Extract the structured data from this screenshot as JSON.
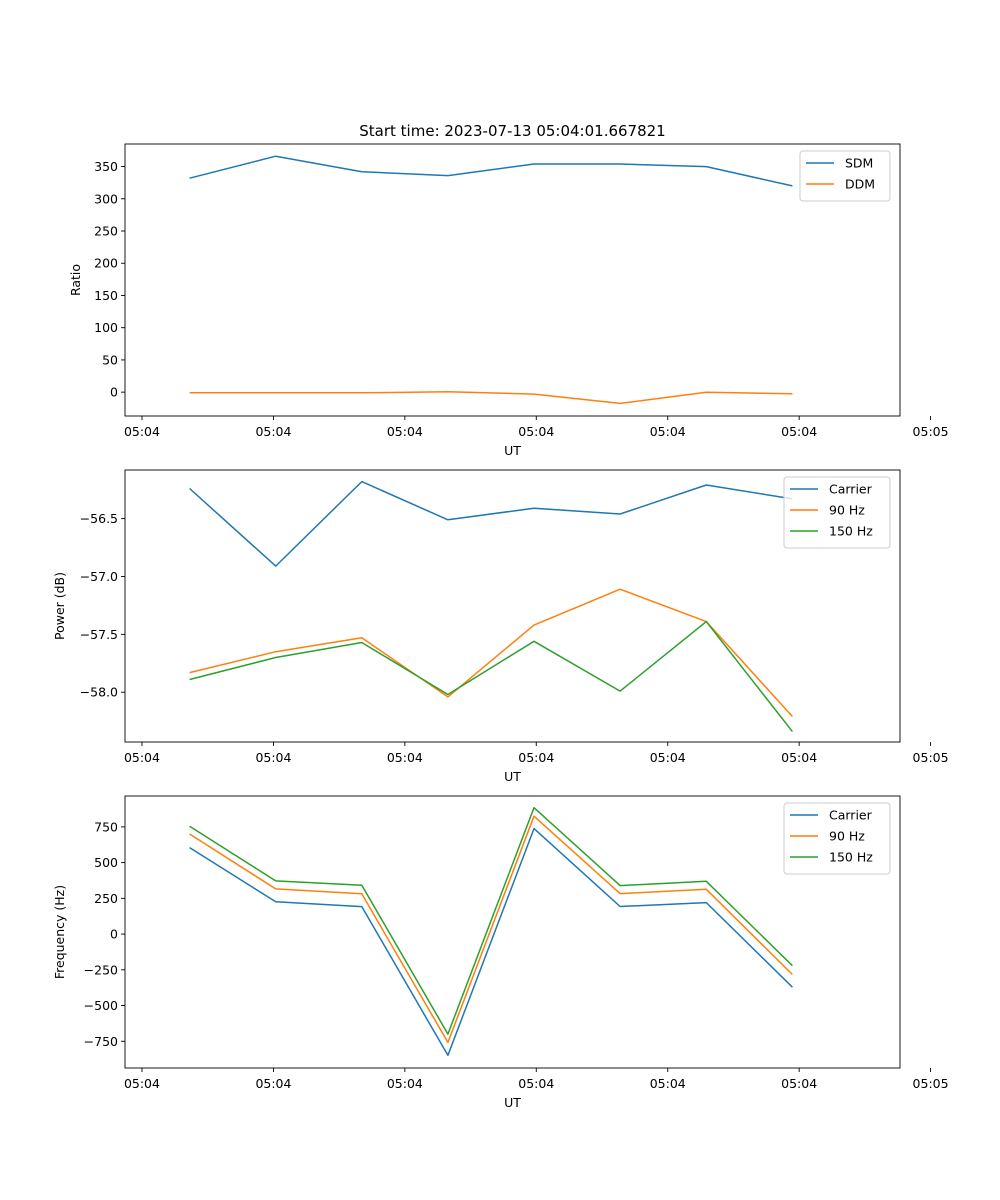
{
  "chart_data": [
    {
      "type": "line",
      "title": "Start time: 2023-07-13 05:04:01.667821",
      "xlabel": "UT",
      "ylabel": "Ratio",
      "x_tick_labels": [
        "05:04",
        "05:04",
        "05:04",
        "05:04",
        "05:04",
        "05:04",
        "05:04"
      ],
      "x_last_tick_label": "05:05",
      "y_ticks": [
        0,
        50,
        100,
        150,
        200,
        250,
        300,
        350
      ],
      "y_tick_labels": [
        "0",
        "50",
        "100",
        "150",
        "200",
        "250",
        "300",
        "350"
      ],
      "ylim": [
        -37,
        385
      ],
      "x": [
        1,
        2,
        3,
        4,
        5,
        6,
        7,
        8
      ],
      "xlim": [
        0.25,
        9.25
      ],
      "legend_location": "top-right",
      "series": [
        {
          "name": "SDM",
          "color": "#1f77b4",
          "values": [
            332,
            366,
            342,
            336,
            354,
            354,
            350,
            320
          ]
        },
        {
          "name": "DDM",
          "color": "#ff7f0e",
          "values": [
            -1,
            -1,
            -1,
            0.5,
            -3,
            -17.5,
            0,
            -2.5
          ]
        }
      ]
    },
    {
      "type": "line",
      "title": "",
      "xlabel": "UT",
      "ylabel": "Power (dB)",
      "x_tick_labels": [
        "05:04",
        "05:04",
        "05:04",
        "05:04",
        "05:04",
        "05:04",
        "05:04"
      ],
      "x_last_tick_label": "05:05",
      "y_ticks": [
        -58.0,
        -57.5,
        -57.0,
        -56.5
      ],
      "y_tick_labels": [
        "−58.0",
        "−57.5",
        "−57.0",
        "−56.5"
      ],
      "ylim": [
        -58.43,
        -56.08
      ],
      "x": [
        1,
        2,
        3,
        4,
        5,
        6,
        7,
        8
      ],
      "xlim": [
        0.25,
        9.25
      ],
      "legend_location": "top-right",
      "series": [
        {
          "name": "Carrier",
          "color": "#1f77b4",
          "values": [
            -56.24,
            -56.91,
            -56.18,
            -56.51,
            -56.41,
            -56.46,
            -56.21,
            -56.33
          ]
        },
        {
          "name": "90 Hz",
          "color": "#ff7f0e",
          "values": [
            -57.83,
            -57.65,
            -57.53,
            -58.04,
            -57.42,
            -57.11,
            -57.39,
            -58.21
          ]
        },
        {
          "name": "150 Hz",
          "color": "#2ca02c",
          "values": [
            -57.89,
            -57.7,
            -57.57,
            -58.02,
            -57.56,
            -57.99,
            -57.39,
            -58.34
          ]
        }
      ]
    },
    {
      "type": "line",
      "title": "",
      "xlabel": "UT",
      "ylabel": "Frequency (Hz)",
      "x_tick_labels": [
        "05:04",
        "05:04",
        "05:04",
        "05:04",
        "05:04",
        "05:04",
        "05:04"
      ],
      "x_last_tick_label": "05:05",
      "y_ticks": [
        -750,
        -500,
        -250,
        0,
        250,
        500,
        750
      ],
      "y_tick_labels": [
        "−750",
        "−500",
        "−250",
        "0",
        "250",
        "500",
        "750"
      ],
      "ylim": [
        -937,
        966
      ],
      "x": [
        1,
        2,
        3,
        4,
        5,
        6,
        7,
        8
      ],
      "xlim": [
        0.25,
        9.25
      ],
      "legend_location": "top-right",
      "series": [
        {
          "name": "Carrier",
          "color": "#1f77b4",
          "values": [
            605,
            226,
            192,
            -848,
            738,
            193,
            220,
            -372
          ]
        },
        {
          "name": "90 Hz",
          "color": "#ff7f0e",
          "values": [
            700,
            316,
            282,
            -758,
            825,
            283,
            313,
            -283
          ]
        },
        {
          "name": "150 Hz",
          "color": "#2ca02c",
          "values": [
            755,
            372,
            342,
            -700,
            884,
            339,
            369,
            -221
          ]
        }
      ]
    }
  ]
}
